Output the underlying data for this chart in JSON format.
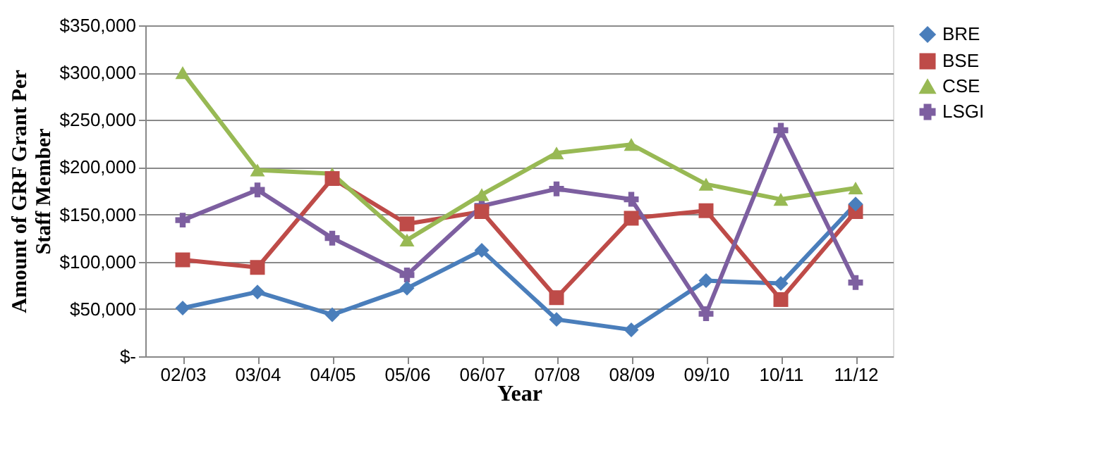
{
  "chart_data": {
    "type": "line",
    "xlabel": "Year",
    "ylabel": "Amount of GRF Grant Per Staff Member",
    "categories": [
      "02/03",
      "03/04",
      "04/05",
      "05/06",
      "06/07",
      "07/08",
      "08/09",
      "09/10",
      "10/11",
      "11/12"
    ],
    "series": [
      {
        "name": "BRE",
        "color": "#4a7ebb",
        "marker": "diamond",
        "values": [
          51000,
          68000,
          44000,
          72000,
          112000,
          39000,
          28000,
          80000,
          77000,
          161000
        ]
      },
      {
        "name": "BSE",
        "color": "#be4b48",
        "marker": "square",
        "values": [
          102000,
          94000,
          188000,
          140000,
          153000,
          62000,
          146000,
          154000,
          60000,
          153000
        ]
      },
      {
        "name": "CSE",
        "color": "#98b954",
        "marker": "triangle",
        "values": [
          300000,
          197000,
          193000,
          123000,
          171000,
          215000,
          224000,
          182000,
          166000,
          178000
        ]
      },
      {
        "name": "LSGI",
        "color": "#7d5fa0",
        "marker": "cross",
        "values": [
          144000,
          176000,
          125000,
          86000,
          159000,
          177000,
          166000,
          45000,
          239000,
          78000
        ]
      }
    ],
    "ylim": [
      0,
      350000
    ],
    "yticks": [
      {
        "value": 0,
        "label": "$-"
      },
      {
        "value": 50000,
        "label": "$50,000"
      },
      {
        "value": 100000,
        "label": "$100,000"
      },
      {
        "value": 150000,
        "label": "$150,000"
      },
      {
        "value": 200000,
        "label": "$200,000"
      },
      {
        "value": 250000,
        "label": "$250,000"
      },
      {
        "value": 300000,
        "label": "$300,000"
      },
      {
        "value": 350000,
        "label": "$350,000"
      }
    ],
    "grid": "y",
    "legend": "right",
    "line_style": "solid"
  }
}
